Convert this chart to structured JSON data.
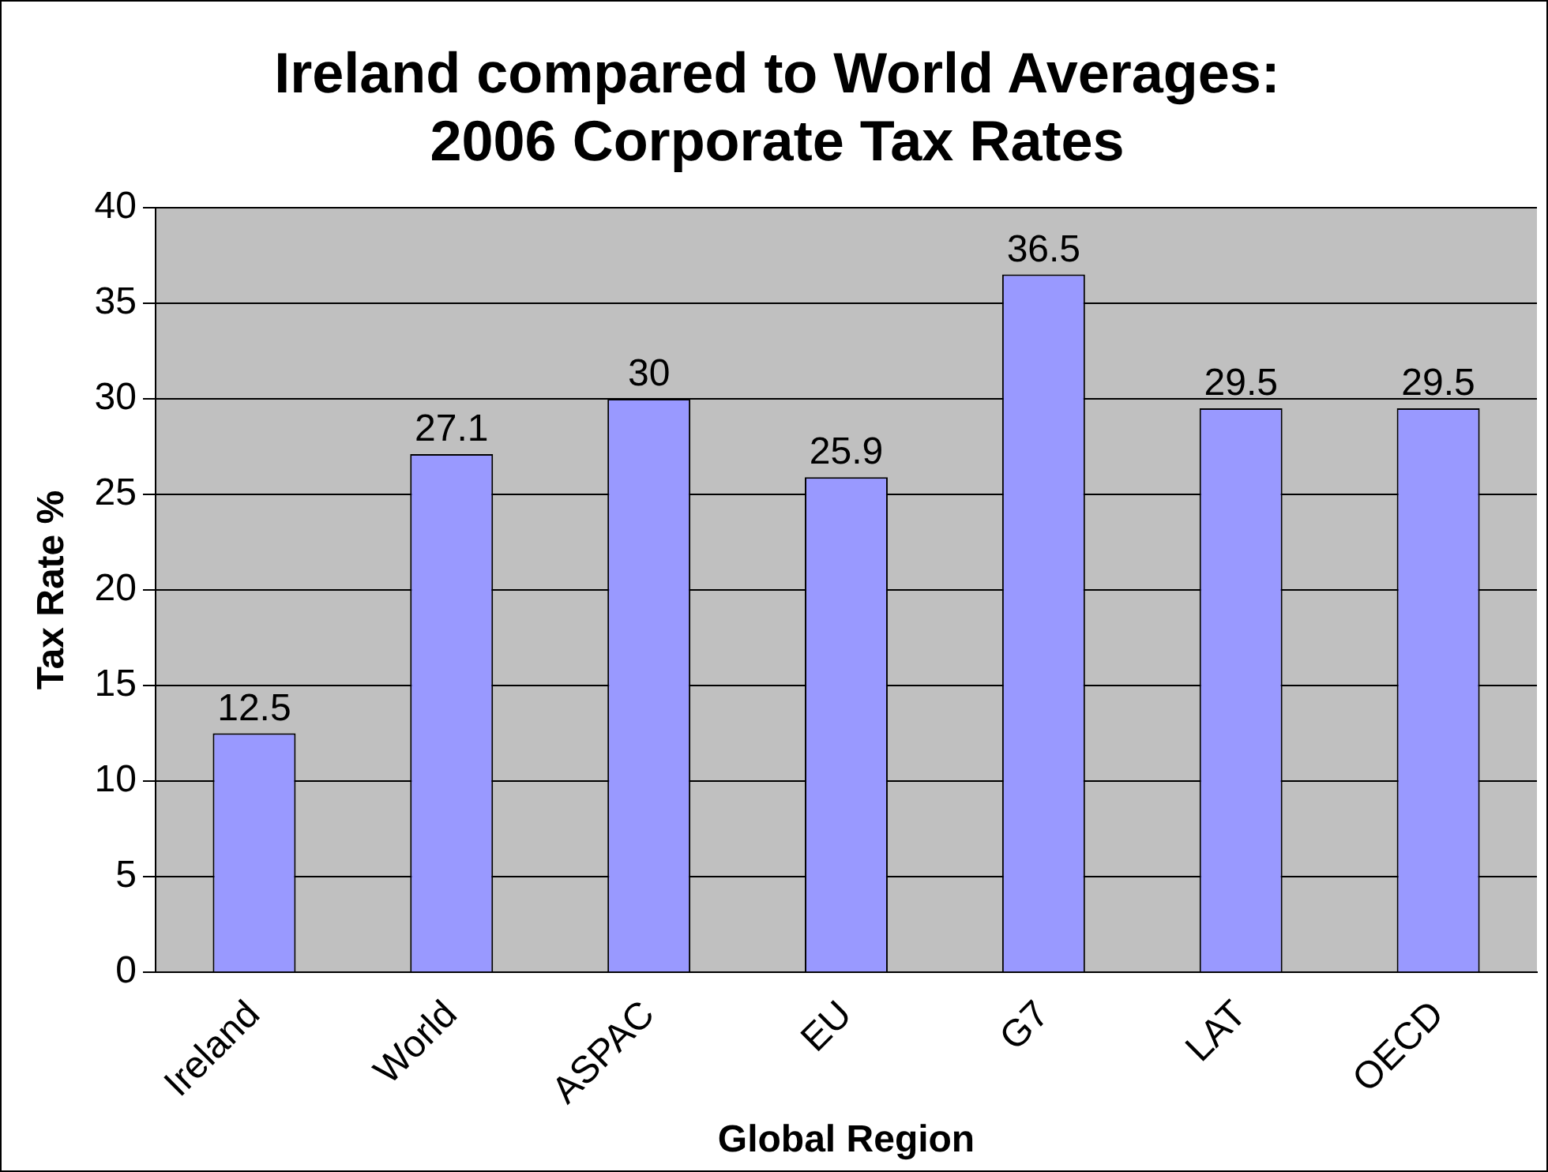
{
  "chart_data": {
    "type": "bar",
    "title": "Ireland compared to World Averages:\n2006 Corporate Tax Rates",
    "xlabel": "Global Region",
    "ylabel": "Tax Rate %",
    "categories": [
      "Ireland",
      "World",
      "ASPAC",
      "EU",
      "G7",
      "LAT",
      "OECD"
    ],
    "values": [
      12.5,
      27.1,
      30,
      25.9,
      36.5,
      29.5,
      29.5
    ],
    "color": "#9999ff",
    "ylim": [
      0,
      40
    ],
    "yticks": [
      0,
      5,
      10,
      15,
      20,
      25,
      30,
      35,
      40
    ],
    "grid": "y",
    "data_labels": true,
    "legend": false
  }
}
